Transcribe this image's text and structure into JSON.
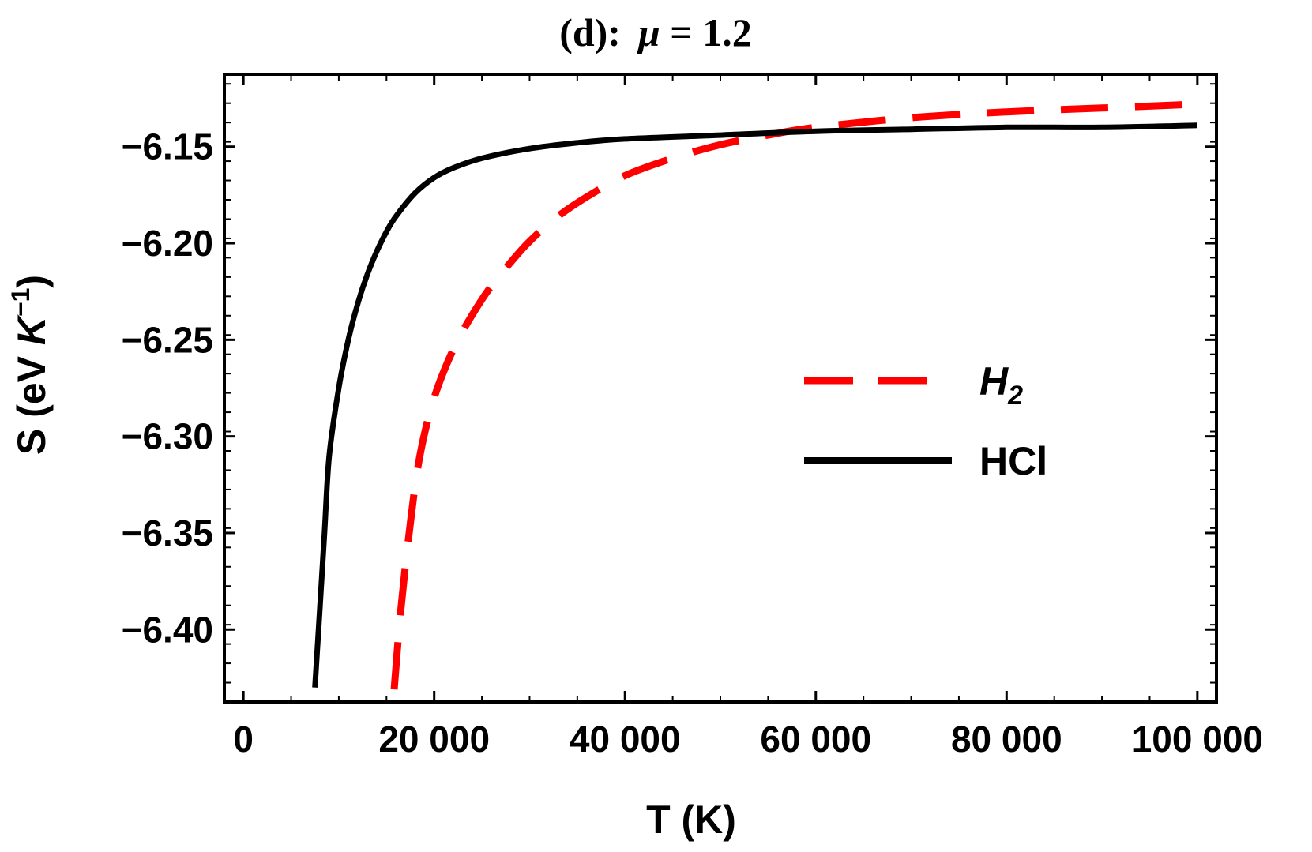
{
  "chart_data": {
    "type": "line",
    "title": {
      "prefix": "(d):",
      "symbol": "μ",
      "rest": " = 1.2"
    },
    "xlabel": "T (K)",
    "ylabel": {
      "prefix": "S (eV ",
      "unit": "K",
      "exponent": "−1",
      "suffix": ")"
    },
    "xlim": [
      -2000,
      102000
    ],
    "ylim": [
      -6.4375,
      -6.1125
    ],
    "x_ticks": [
      0,
      20000,
      40000,
      60000,
      80000,
      100000
    ],
    "x_tick_labels": [
      "0",
      "20 000",
      "40 000",
      "60 000",
      "80 000",
      "100 000"
    ],
    "y_ticks": [
      -6.15,
      -6.2,
      -6.25,
      -6.3,
      -6.35,
      -6.4
    ],
    "y_tick_labels": [
      "−6.15",
      "−6.20",
      "−6.25",
      "−6.30",
      "−6.35",
      "−6.40"
    ],
    "series": [
      {
        "name": "H",
        "name_sub": "2",
        "color": "#ff0000",
        "dash": true,
        "x": [
          15800,
          16500,
          17500,
          18500,
          20000,
          22000,
          24000,
          26000,
          28000,
          30000,
          33000,
          36000,
          40000,
          45000,
          50000,
          55000,
          60000,
          70000,
          80000,
          90000,
          100000
        ],
        "y": [
          -6.431,
          -6.39,
          -6.345,
          -6.31,
          -6.28,
          -6.255,
          -6.237,
          -6.222,
          -6.21,
          -6.199,
          -6.186,
          -6.176,
          -6.165,
          -6.156,
          -6.149,
          -6.144,
          -6.14,
          -6.135,
          -6.132,
          -6.13,
          -6.128
        ]
      },
      {
        "name": "HCl",
        "color": "#000000",
        "dash": false,
        "x": [
          7500,
          8000,
          8500,
          9000,
          10000,
          11000,
          12000,
          13000,
          14000,
          15000,
          16000,
          18000,
          20000,
          22000,
          25000,
          30000,
          35000,
          40000,
          50000,
          60000,
          70000,
          80000,
          90000,
          100000
        ],
        "y": [
          -6.43,
          -6.39,
          -6.35,
          -6.31,
          -6.275,
          -6.25,
          -6.231,
          -6.216,
          -6.204,
          -6.194,
          -6.186,
          -6.174,
          -6.166,
          -6.161,
          -6.156,
          -6.151,
          -6.148,
          -6.146,
          -6.144,
          -6.142,
          -6.141,
          -6.14,
          -6.14,
          -6.139
        ]
      }
    ]
  }
}
